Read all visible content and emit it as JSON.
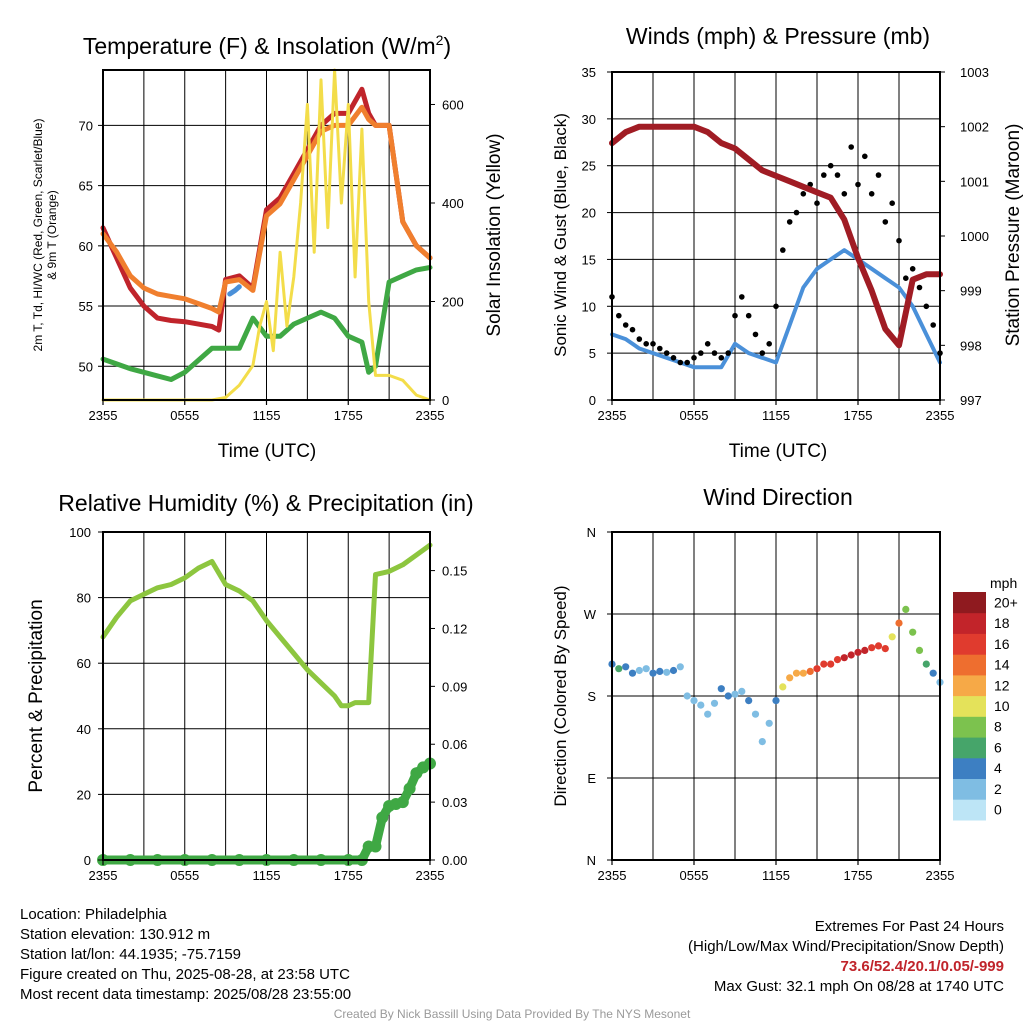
{
  "chart_data": [
    {
      "type": "line",
      "title": "Temperature (F) & Insolation (W/m²)",
      "title_main": "Temperature (F) & Insolation (W/m",
      "title_sup": "2",
      "title_end": ")",
      "xlabel": "Time (UTC)",
      "ylabel_left_line1": "2m T, Td, HI/WC (Red, Green, Scarlet/Blue)",
      "ylabel_left_line2": "& 9m T (Orange)",
      "ylabel_right": "Solar Insolation (Yellow)",
      "x_tick_labels": [
        "2355",
        "0555",
        "1155",
        "1755",
        "2355"
      ],
      "x_range_hours": [
        0,
        24
      ],
      "ylim_left": [
        47.2,
        74.6
      ],
      "ylim_right": [
        0,
        670
      ],
      "yticks_left": [
        50,
        55,
        60,
        65,
        70
      ],
      "yticks_right": [
        0,
        200,
        400,
        600
      ],
      "series": [
        {
          "name": "Red",
          "color": "#c0242b",
          "x": [
            0,
            1,
            2,
            3,
            4,
            5,
            6,
            7,
            8,
            8.5,
            9,
            10,
            11,
            12,
            13,
            14,
            15,
            16,
            17,
            18,
            19,
            19.5,
            20,
            21,
            22,
            23,
            24
          ],
          "y": [
            61.5,
            59,
            56.5,
            55,
            54,
            53.8,
            53.7,
            53.5,
            53.3,
            53.0,
            57.2,
            57.5,
            56.5,
            63,
            64,
            66,
            68,
            70,
            71,
            71,
            73,
            71,
            70,
            70,
            62,
            60,
            59
          ]
        },
        {
          "name": "Orange",
          "color": "#f07f2e",
          "x": [
            0,
            1,
            2,
            3,
            4,
            5,
            6,
            7,
            8,
            8.5,
            9,
            10,
            11,
            12,
            13,
            14,
            15,
            16,
            17,
            18,
            19,
            19.5,
            20,
            21,
            22,
            23,
            24
          ],
          "y": [
            61,
            59.5,
            57.5,
            56.5,
            56,
            55.8,
            55.6,
            55.2,
            54.8,
            54.5,
            57,
            57.2,
            56.3,
            62.5,
            63.5,
            65.5,
            67.5,
            69.5,
            70,
            70,
            71.5,
            70.5,
            70,
            70,
            62,
            60,
            59
          ]
        },
        {
          "name": "Green",
          "color": "#3fa844",
          "x": [
            0,
            1,
            2,
            3,
            4,
            5,
            6,
            7,
            8,
            9,
            10,
            11,
            12,
            13,
            14,
            15,
            16,
            17,
            18,
            19,
            19.5,
            20,
            21,
            22,
            23,
            24
          ],
          "y": [
            50.6,
            50.2,
            49.8,
            49.5,
            49.2,
            48.9,
            49.5,
            50.5,
            51.5,
            51.5,
            51.5,
            54,
            52.5,
            52.5,
            53.5,
            54,
            54.5,
            54,
            52.5,
            52,
            49.5,
            50,
            57,
            57.5,
            58,
            58.2
          ]
        },
        {
          "name": "Blue",
          "color": "#4a90d9",
          "x": [
            9.3,
            9.7,
            10
          ],
          "y": [
            56.0,
            56.3,
            56.6
          ]
        },
        {
          "name": "Yellow",
          "color": "#f3dd4a",
          "axis": "right",
          "x": [
            0,
            1,
            2,
            3,
            4,
            5,
            6,
            7,
            8,
            9,
            10,
            11,
            11.5,
            12,
            12.5,
            13,
            13.5,
            14,
            14.5,
            15,
            15.5,
            16,
            16.5,
            17,
            17.5,
            18,
            18.5,
            19,
            19.5,
            20,
            21,
            22,
            23,
            24
          ],
          "y": [
            0,
            0,
            0,
            0,
            0,
            0,
            0,
            0,
            0,
            5,
            30,
            70,
            150,
            200,
            100,
            300,
            150,
            250,
            400,
            600,
            300,
            650,
            350,
            670,
            400,
            600,
            250,
            550,
            200,
            50,
            50,
            40,
            10,
            0
          ]
        }
      ]
    },
    {
      "type": "scatter",
      "title": "Winds (mph) & Pressure (mb)",
      "xlabel": "Time (UTC)",
      "ylabel_left": "Sonic Wind & Gust (Blue, Black)",
      "ylabel_right": "Station Pressure (Maroon)",
      "x_tick_labels": [
        "2355",
        "0555",
        "1155",
        "1755",
        "2355"
      ],
      "x_range_hours": [
        0,
        24
      ],
      "ylim_left": [
        0,
        35
      ],
      "ylim_right": [
        997,
        1003
      ],
      "yticks_left": [
        0,
        5,
        10,
        15,
        20,
        25,
        30,
        35
      ],
      "yticks_right": [
        997,
        998,
        999,
        1000,
        1001,
        1002,
        1003
      ],
      "series": [
        {
          "name": "Blue",
          "color": "#4a90d9",
          "x": [
            0,
            1,
            2,
            3,
            4,
            5,
            6,
            7,
            8,
            9,
            10,
            11,
            12,
            13,
            14,
            15,
            16,
            17,
            18,
            19,
            20,
            21,
            22,
            23,
            24
          ],
          "y": [
            7,
            6.5,
            5.5,
            5,
            4.5,
            4,
            3.5,
            3.5,
            3.5,
            6,
            5,
            4.5,
            4,
            8,
            12,
            14,
            15,
            16,
            15,
            14,
            13,
            12,
            10,
            7,
            4
          ]
        },
        {
          "name": "Black",
          "color": "#000000",
          "x": [
            0,
            0.5,
            1,
            1.5,
            2,
            2.5,
            3,
            3.5,
            4,
            4.5,
            5,
            5.5,
            6,
            6.5,
            7,
            7.5,
            8,
            8.5,
            9,
            9.5,
            10,
            10.5,
            11,
            11.5,
            12,
            12.5,
            13,
            13.5,
            14,
            14.5,
            15,
            15.5,
            16,
            16.5,
            17,
            17.5,
            18,
            18.5,
            19,
            19.5,
            20,
            20.5,
            21,
            21.5,
            22,
            22.5,
            23,
            23.5,
            24
          ],
          "y": [
            11,
            9,
            8,
            7.5,
            6.5,
            6,
            6,
            5.5,
            5,
            4.5,
            4,
            4,
            4.5,
            5,
            6,
            5,
            4.5,
            5,
            9,
            11,
            9,
            7,
            5,
            6,
            10,
            16,
            19,
            20,
            22,
            23,
            21,
            24,
            25,
            24,
            22,
            27,
            23,
            26,
            22,
            24,
            19,
            21,
            17,
            13,
            14,
            12,
            10,
            8,
            5
          ]
        },
        {
          "name": "Maroon",
          "color": "#a01c24",
          "axis": "right",
          "x": [
            0,
            1,
            2,
            3,
            4,
            5,
            6,
            7,
            8,
            9,
            10,
            11,
            12,
            13,
            14,
            15,
            16,
            17,
            18,
            19,
            20,
            21,
            22,
            23,
            24
          ],
          "y": [
            1001.7,
            1001.9,
            1002.0,
            1002.0,
            1002.0,
            1002.0,
            1002.0,
            1001.9,
            1001.7,
            1001.6,
            1001.4,
            1001.2,
            1001.1,
            1001.0,
            1000.9,
            1000.8,
            1000.7,
            1000.3,
            999.6,
            999.0,
            998.3,
            998.0,
            999.2,
            999.3,
            999.3
          ]
        }
      ]
    },
    {
      "type": "line",
      "title": "Relative Humidity (%) & Precipitation (in)",
      "ylabel_left": "Percent & Precipitation",
      "x_tick_labels": [
        "2355",
        "0555",
        "1155",
        "1755",
        "2355"
      ],
      "x_range_hours": [
        0,
        24
      ],
      "ylim_left": [
        0,
        100
      ],
      "ylim_right": [
        0,
        0.17
      ],
      "yticks_left": [
        0,
        20,
        40,
        60,
        80,
        100
      ],
      "yticks_right_labels": [
        "0.00",
        "0.03",
        "0.06",
        "0.09",
        "0.12",
        "0.15"
      ],
      "yticks_right": [
        0,
        0.03,
        0.06,
        0.09,
        0.12,
        0.15
      ],
      "series": [
        {
          "name": "RH",
          "color": "#8dc63f",
          "x": [
            0,
            1,
            2,
            3,
            4,
            5,
            6,
            7,
            8,
            9,
            10,
            11,
            12,
            13,
            14,
            15,
            16,
            17,
            17.5,
            18,
            18.5,
            19,
            19.5,
            20,
            21,
            22,
            23,
            24
          ],
          "y": [
            68,
            74,
            79,
            81,
            83,
            84,
            86,
            89,
            91,
            84,
            82,
            79,
            73,
            68,
            63,
            58,
            54,
            50,
            47,
            47,
            48,
            48,
            48,
            87,
            88,
            90,
            93,
            96
          ]
        },
        {
          "name": "Precip",
          "color": "#3fa844",
          "axis": "right",
          "x": [
            0,
            2,
            4,
            6,
            8,
            10,
            12,
            14,
            16,
            18,
            19,
            19.5,
            20,
            20.5,
            21,
            21.5,
            22,
            22.5,
            23,
            23.5,
            24
          ],
          "y": [
            0,
            0,
            0,
            0,
            0,
            0,
            0,
            0,
            0,
            0,
            0,
            0.007,
            0.007,
            0.022,
            0.028,
            0.029,
            0.03,
            0.037,
            0.045,
            0.048,
            0.05
          ]
        }
      ]
    },
    {
      "type": "scatter",
      "title": "Wind Direction",
      "ylabel_left": "Direction (Colored By Speed)",
      "x_tick_labels": [
        "2355",
        "0555",
        "1155",
        "1755",
        "2355"
      ],
      "x_range_hours": [
        0,
        24
      ],
      "y_tick_labels": [
        "N",
        "E",
        "S",
        "W",
        "N"
      ],
      "ylim_deg": [
        0,
        360
      ],
      "colorbar_unit": "mph",
      "colorbar_labels": [
        "0",
        "2",
        "4",
        "6",
        "8",
        "10",
        "12",
        "14",
        "16",
        "18",
        "20+"
      ],
      "colorbar_colors": [
        "#bde5f6",
        "#7fbde3",
        "#3d7fc2",
        "#46a56a",
        "#7cc24e",
        "#e4e25a",
        "#f6a947",
        "#ee6e2f",
        "#e03b2e",
        "#c2242a",
        "#8f1a1f"
      ],
      "points": {
        "x": [
          0,
          0.5,
          1,
          1.5,
          2,
          2.5,
          3,
          3.5,
          4,
          4.5,
          5,
          5.5,
          6,
          6.5,
          7,
          7.5,
          8,
          8.5,
          9,
          9.5,
          10,
          10.5,
          11,
          11.5,
          12,
          12.5,
          13,
          13.5,
          14,
          14.5,
          15,
          15.5,
          16,
          16.5,
          17,
          17.5,
          18,
          18.5,
          19,
          19.5,
          20,
          20.5,
          21,
          21.5,
          22,
          22.5,
          23,
          23.5,
          24
        ],
        "deg": [
          215,
          210,
          212,
          205,
          208,
          210,
          205,
          207,
          206,
          208,
          212,
          180,
          175,
          170,
          160,
          172,
          188,
          180,
          182,
          185,
          175,
          160,
          130,
          150,
          175,
          190,
          200,
          205,
          205,
          207,
          210,
          215,
          215,
          220,
          222,
          225,
          228,
          230,
          233,
          235,
          232,
          245,
          260,
          275,
          250,
          230,
          215,
          205,
          195
        ],
        "speed": [
          5,
          6,
          4,
          4,
          3,
          3,
          4,
          4,
          3,
          4,
          3,
          2,
          2,
          2,
          2,
          3,
          5,
          4,
          3,
          2,
          4,
          2,
          2,
          2,
          4,
          10,
          12,
          13,
          13,
          14,
          16,
          16,
          17,
          17,
          18,
          18,
          19,
          18,
          17,
          16,
          16,
          10,
          14,
          8,
          9,
          8,
          6,
          4,
          3
        ]
      }
    }
  ],
  "info_left": [
    "Location: Philadelphia",
    "Station elevation: 130.912 m",
    "Station lat/lon: 44.1935; -75.7159",
    "Figure created on Thu, 2025-08-28, at 23:58 UTC",
    "Most recent data timestamp: 2025/08/28 23:55:00"
  ],
  "info_right": {
    "line1": "Extremes For Past 24 Hours",
    "line2": "(High/Low/Max Wind/Precipitation/Snow Depth)",
    "values": "73.6/52.4/20.1/0.05/-999",
    "gust": "Max Gust: 32.1 mph On 08/28 at 1740 UTC"
  },
  "credit": "Created By Nick Bassill Using Data Provided By The NYS Mesonet"
}
